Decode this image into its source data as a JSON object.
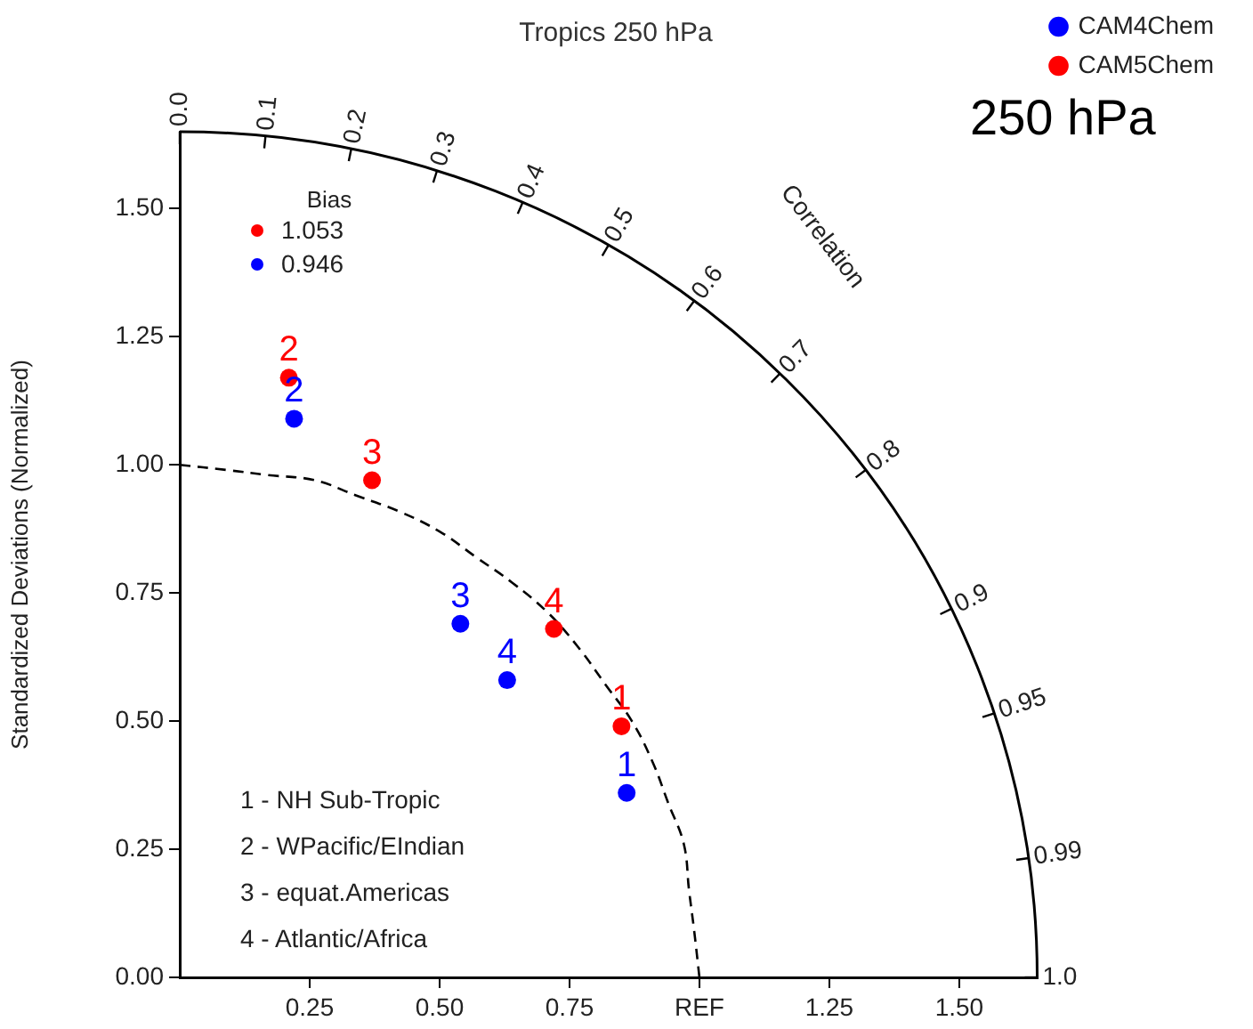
{
  "chart_data": {
    "type": "scatter",
    "title": "Tropics 250 hPa",
    "ylabel": "Standardized Deviations (Normalized)",
    "xlim": [
      0,
      1.65
    ],
    "ylim": [
      0,
      1.65
    ],
    "xticks": [
      {
        "value": 0.25,
        "label": "0.25"
      },
      {
        "value": 0.5,
        "label": "0.50"
      },
      {
        "value": 0.75,
        "label": "0.75"
      },
      {
        "value": 1,
        "label": "REF"
      },
      {
        "value": 1.25,
        "label": "1.25"
      },
      {
        "value": 1.5,
        "label": "1.50"
      }
    ],
    "yticks": [
      {
        "value": 0,
        "label": "0.00"
      },
      {
        "value": 0.25,
        "label": "0.25"
      },
      {
        "value": 0.5,
        "label": "0.50"
      },
      {
        "value": 0.75,
        "label": "0.75"
      },
      {
        "value": 1,
        "label": "1.00"
      },
      {
        "value": 1.25,
        "label": "1.25"
      },
      {
        "value": 1.5,
        "label": "1.50"
      }
    ],
    "series": [
      {
        "name": "CAM4Chem",
        "color": "#0000ff",
        "x": [
          0.86,
          0.22,
          0.54,
          0.63
        ],
        "values": [
          0.36,
          1.09,
          0.69,
          0.58
        ]
      },
      {
        "name": "CAM5Chem",
        "color": "#ff0000",
        "x": [
          0.85,
          0.21,
          0.37,
          0.72
        ],
        "values": [
          0.49,
          1.17,
          0.97,
          0.68
        ]
      },
      {
        "type": "line",
        "color": "#000000",
        "line_style": "dashed",
        "marker": "none",
        "x": [
          0,
          0.09,
          0.17,
          0.26,
          0.34,
          0.42,
          0.5,
          0.57,
          0.64,
          0.71,
          0.77,
          0.82,
          0.87,
          0.91,
          0.94,
          0.97,
          0.98,
          0.99,
          1
        ],
        "values": [
          1,
          0.99,
          0.98,
          0.97,
          0.94,
          0.91,
          0.87,
          0.82,
          0.77,
          0.71,
          0.64,
          0.57,
          0.5,
          0.42,
          0.34,
          0.26,
          0.17,
          0.09,
          0
        ]
      }
    ],
    "annotations": [
      "250 hPa",
      "Bias",
      "1.053",
      "0.946",
      "Correlation",
      "1 - NH Sub-Tropic",
      "2 - WPacific/EIndian",
      "3 - equat.Americas",
      "4 - Atlantic/Africa",
      {
        "text": "1",
        "x": 0.86,
        "y": 0.36
      },
      {
        "text": "2",
        "x": 0.22,
        "y": 1.09
      },
      {
        "text": "3",
        "x": 0.54,
        "y": 0.69
      },
      {
        "text": "4",
        "x": 0.63,
        "y": 0.58
      },
      {
        "text": "1",
        "x": 0.85,
        "y": 0.49
      },
      {
        "text": "2",
        "x": 0.21,
        "y": 1.17
      },
      {
        "text": "3",
        "x": 0.37,
        "y": 0.97
      },
      {
        "text": "4",
        "x": 0.72,
        "y": 0.68
      },
      "0.0",
      "0.1",
      "0.2",
      "0.3",
      "0.4",
      "0.5",
      "0.6",
      "0.7",
      "0.8",
      "0.9",
      "0.95",
      "0.99",
      "1.0"
    ],
    "legend": "top right",
    "marker": "circle",
    "grid": false
  }
}
